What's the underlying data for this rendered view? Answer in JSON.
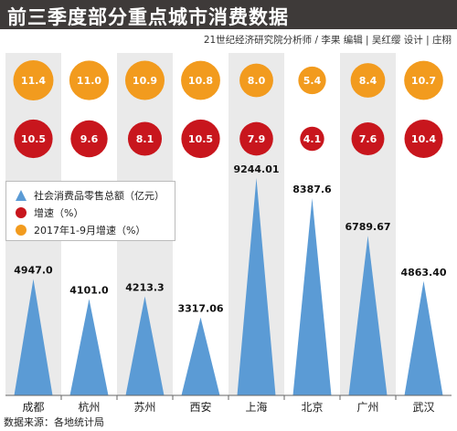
{
  "header": {
    "title": "前三季度部分重点城市消费数据",
    "credits": "21世纪经济研究院分析师 / 李果   编辑 | 吴红缨   设计 | 庄栩"
  },
  "footer": {
    "source": "数据来源：各地统计局"
  },
  "colors": {
    "title_bg": "#3e3a39",
    "orange": "#f29b1e",
    "red": "#c8161d",
    "blue": "#5b9bd5",
    "stripe": "#eaeaea",
    "axis": "#666666"
  },
  "legend": {
    "items": [
      {
        "label": "社会消费品零售总额（亿元）",
        "marker": "triangle",
        "color": "#5b9bd5"
      },
      {
        "label": "增速（%）",
        "marker": "circle",
        "color": "#c8161d"
      },
      {
        "label": "2017年1-9月增速（%）",
        "marker": "circle",
        "color": "#f29b1e"
      }
    ]
  },
  "chart_data": {
    "type": "bar",
    "categories": [
      "成都",
      "杭州",
      "苏州",
      "西安",
      "上海",
      "北京",
      "广州",
      "武汉"
    ],
    "series": [
      {
        "name": "社会消费品零售总额（亿元）",
        "values": [
          4947.0,
          4101.0,
          4213.3,
          3317.06,
          9244.01,
          8387.6,
          6789.67,
          4863.4
        ],
        "labels": [
          "4947.0",
          "4101.0",
          "4213.3",
          "3317.06",
          "9244.01",
          "8387.6",
          "6789.67",
          "4863.40"
        ]
      },
      {
        "name": "增速（%）",
        "values": [
          10.5,
          9.6,
          8.1,
          10.5,
          7.9,
          4.1,
          7.6,
          10.4
        ],
        "labels": [
          "10.5",
          "9.6",
          "8.1",
          "10.5",
          "7.9",
          "4.1",
          "7.6",
          "10.4"
        ]
      },
      {
        "name": "2017年1-9月增速（%）",
        "values": [
          11.4,
          11.0,
          10.9,
          10.8,
          8.0,
          5.4,
          8.4,
          10.7
        ],
        "labels": [
          "11.4",
          "11.0",
          "10.9",
          "10.8",
          "8.0",
          "5.4",
          "8.4",
          "10.7"
        ]
      }
    ],
    "ylim": [
      0,
      9244.01
    ],
    "grid": false,
    "legend_position": "left"
  }
}
